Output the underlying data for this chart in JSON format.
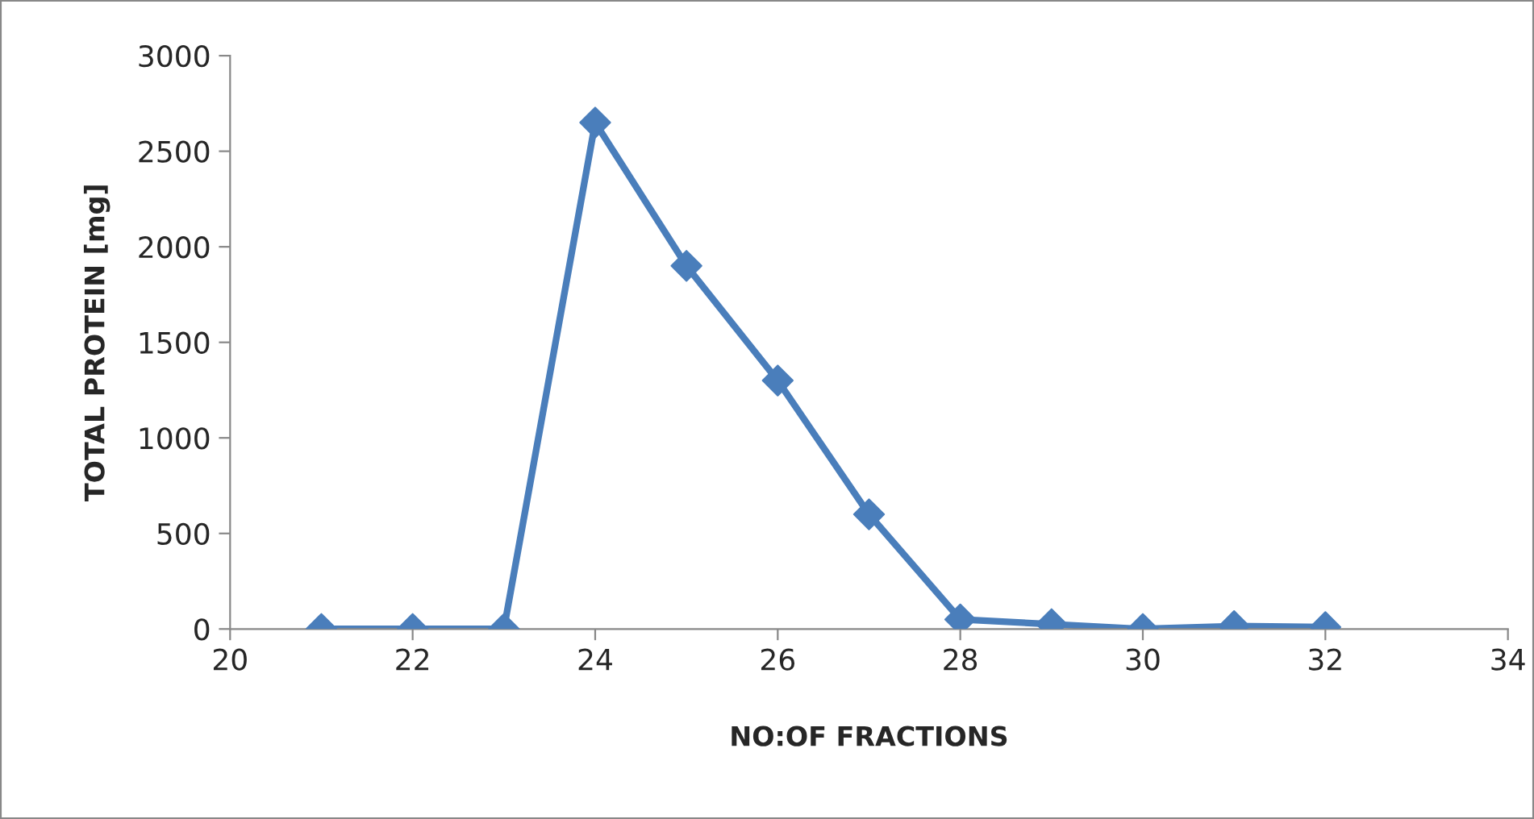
{
  "chart_data": {
    "type": "line",
    "xlabel": "NO:OF FRACTIONS",
    "ylabel": "TOTAL PROTEIN [mg]",
    "x": [
      21,
      22,
      23,
      24,
      25,
      26,
      27,
      28,
      29,
      30,
      31,
      32
    ],
    "series": [
      {
        "color": "#4a7ebb",
        "values": [
          0,
          0,
          0,
          2650,
          1900,
          1300,
          600,
          50,
          25,
          0,
          15,
          10
        ]
      }
    ],
    "xlim": [
      20,
      34
    ],
    "xticks": [
      20,
      22,
      24,
      26,
      28,
      30,
      32,
      34
    ],
    "ylim": [
      0,
      3000
    ],
    "yticks": [
      0,
      500,
      1000,
      1500,
      2000,
      2500,
      3000
    ],
    "grid": false,
    "legend": false,
    "marker": "diamond",
    "line_style": "solid"
  }
}
